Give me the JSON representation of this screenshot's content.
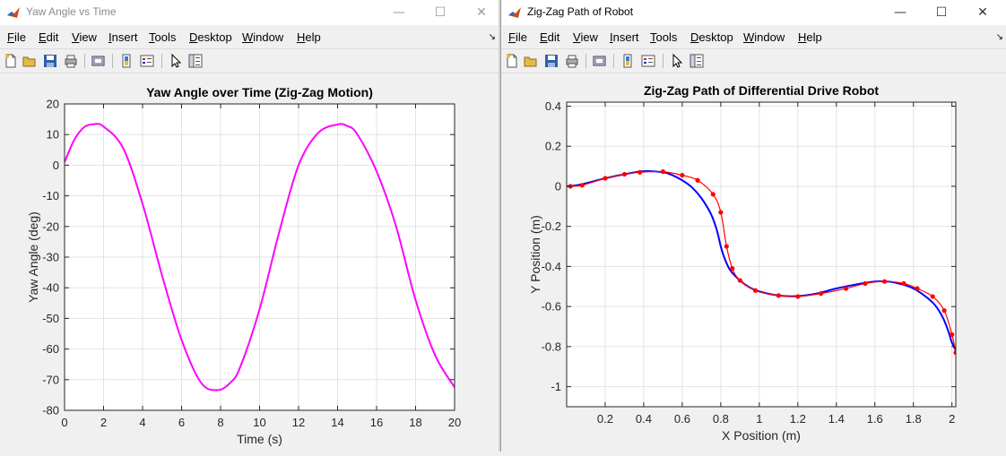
{
  "windows": [
    {
      "title": "Yaw Angle vs Time",
      "menu": [
        "File",
        "Edit",
        "View",
        "Insert",
        "Tools",
        "Desktop",
        "Window",
        "Help"
      ],
      "toolbar_icons": [
        "new-figure-icon",
        "open-file-icon",
        "save-icon",
        "print-icon",
        "print-preview-icon",
        "colorbar-icon",
        "legend-icon",
        "edit-plot-icon",
        "property-inspector-icon"
      ],
      "controls": {
        "minimize": "—",
        "maximize": "☐",
        "close": "✕"
      }
    },
    {
      "title": "Zig-Zag Path of Robot",
      "menu": [
        "File",
        "Edit",
        "View",
        "Insert",
        "Tools",
        "Desktop",
        "Window",
        "Help"
      ],
      "toolbar_icons": [
        "new-figure-icon",
        "open-file-icon",
        "save-icon",
        "print-icon",
        "print-preview-icon",
        "colorbar-icon",
        "legend-icon",
        "edit-plot-icon",
        "property-inspector-icon"
      ],
      "controls": {
        "minimize": "—",
        "maximize": "☐",
        "close": "✕"
      }
    }
  ],
  "chart_data": [
    {
      "type": "line",
      "title": "Yaw Angle over Time (Zig-Zag Motion)",
      "xlabel": "Time (s)",
      "ylabel": "Yaw Angle (deg)",
      "xlim": [
        0,
        20
      ],
      "ylim": [
        -80,
        20
      ],
      "xticks": [
        0,
        2,
        4,
        6,
        8,
        10,
        12,
        14,
        16,
        18,
        20
      ],
      "yticks": [
        20,
        10,
        0,
        -10,
        -20,
        -30,
        -40,
        -50,
        -60,
        -70,
        -80
      ],
      "grid": true,
      "color": "#ff00ff",
      "series": [
        {
          "x": [
            0,
            0.5,
            1,
            1.5,
            2,
            3,
            4,
            5,
            6,
            7,
            7.85,
            8.5,
            9,
            10,
            11,
            12,
            13,
            14,
            14.5,
            15,
            16,
            17,
            18,
            19,
            20
          ],
          "y": [
            1,
            8.3,
            12.4,
            13.4,
            12.6,
            5.6,
            -12.6,
            -36,
            -57,
            -71,
            -73.4,
            -71,
            -66,
            -47,
            -22,
            0,
            10.5,
            13.3,
            12.8,
            10.2,
            -2,
            -20,
            -44,
            -62,
            -72.5
          ]
        }
      ]
    },
    {
      "type": "line",
      "title": "Zig-Zag Path of Differential Drive Robot",
      "xlabel": "X Position (m)",
      "ylabel": "Y Position (m)",
      "xlim": [
        0,
        2.02
      ],
      "ylim": [
        -1.1,
        0.42
      ],
      "xticks": [
        0.2,
        0.4,
        0.6,
        0.8,
        1,
        1.2,
        1.4,
        1.6,
        1.8,
        2
      ],
      "yticks": [
        0.4,
        0.2,
        0,
        -0.2,
        -0.4,
        -0.6,
        -0.8,
        -1
      ],
      "grid": true,
      "series": [
        {
          "color": "#0000ff",
          "x": [
            0,
            0.05,
            0.1,
            0.2,
            0.3,
            0.4,
            0.5,
            0.55,
            0.6,
            0.65,
            0.7,
            0.75,
            0.78,
            0.8,
            0.82,
            0.85,
            0.9,
            0.95,
            1.0,
            1.1,
            1.2,
            1.3,
            1.4,
            1.5,
            1.6,
            1.65,
            1.7,
            1.8,
            1.9,
            1.95,
            1.98,
            2.0,
            2.02
          ],
          "y": [
            0,
            0.005,
            0.015,
            0.04,
            0.06,
            0.075,
            0.07,
            0.055,
            0.03,
            -0.005,
            -0.06,
            -0.14,
            -0.22,
            -0.3,
            -0.36,
            -0.42,
            -0.47,
            -0.505,
            -0.525,
            -0.545,
            -0.548,
            -0.535,
            -0.51,
            -0.49,
            -0.475,
            -0.475,
            -0.48,
            -0.51,
            -0.58,
            -0.65,
            -0.72,
            -0.78,
            -0.82
          ]
        },
        {
          "color": "#ff0000",
          "marker": "dot",
          "x": [
            0.02,
            0.08,
            0.2,
            0.3,
            0.38,
            0.5,
            0.6,
            0.68,
            0.76,
            0.8,
            0.83,
            0.86,
            0.9,
            0.98,
            1.1,
            1.2,
            1.32,
            1.45,
            1.55,
            1.65,
            1.75,
            1.82,
            1.9,
            1.96,
            2.0,
            2.02
          ],
          "y": [
            0.0,
            0.005,
            0.04,
            0.06,
            0.07,
            0.073,
            0.055,
            0.03,
            -0.04,
            -0.13,
            -0.3,
            -0.41,
            -0.47,
            -0.52,
            -0.545,
            -0.55,
            -0.535,
            -0.51,
            -0.485,
            -0.475,
            -0.485,
            -0.51,
            -0.55,
            -0.62,
            -0.74,
            -0.83
          ]
        }
      ]
    }
  ]
}
